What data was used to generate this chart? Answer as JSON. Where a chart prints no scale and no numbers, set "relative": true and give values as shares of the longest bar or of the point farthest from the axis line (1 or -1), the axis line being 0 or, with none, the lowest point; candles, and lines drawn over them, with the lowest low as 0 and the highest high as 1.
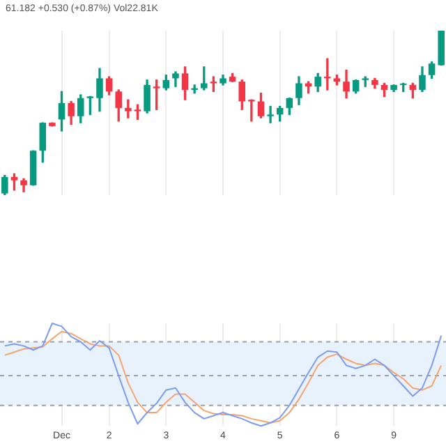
{
  "chart_data": [
    {
      "type": "candlestick",
      "title": "61.182 +0.530 (+0.87%) Vol22.81K",
      "relative": true,
      "grid": "x",
      "tick_labels": false,
      "categories": [
        null,
        null,
        null,
        null,
        null,
        null,
        null,
        null,
        null,
        null,
        null,
        null,
        null,
        null,
        null,
        null,
        null,
        null,
        null,
        null,
        null,
        null,
        null,
        null,
        null,
        null,
        null,
        null,
        null,
        null,
        null,
        null,
        null,
        null,
        null,
        null,
        null,
        null,
        null,
        null,
        null,
        null,
        null,
        null,
        null,
        null,
        null
      ],
      "ohlc": [
        [
          0.01,
          0.12,
          0,
          0.11
        ],
        [
          0.11,
          0.13,
          0.03,
          0.09
        ],
        [
          0.09,
          0.1,
          0.02,
          0.06
        ],
        [
          0.06,
          0.27,
          0.06,
          0.27
        ],
        [
          0.27,
          0.44,
          0.2,
          0.44
        ],
        [
          0.44,
          0.44,
          0.42,
          0.42
        ],
        [
          0.46,
          0.63,
          0.39,
          0.56
        ],
        [
          0.56,
          0.57,
          0.43,
          0.48
        ],
        [
          0.48,
          0.61,
          0.44,
          0.59
        ],
        [
          0.59,
          0.6,
          0.49,
          0.6
        ],
        [
          0.59,
          0.77,
          0.51,
          0.71
        ],
        [
          0.71,
          0.72,
          0.61,
          0.63
        ],
        [
          0.63,
          0.64,
          0.45,
          0.53
        ],
        [
          0.53,
          0.58,
          0.47,
          0.51
        ],
        [
          0.52,
          0.55,
          0.46,
          0.51
        ],
        [
          0.51,
          0.7,
          0.5,
          0.67
        ],
        [
          0.66,
          0.7,
          0.52,
          0.65
        ],
        [
          0.65,
          0.73,
          0.64,
          0.7
        ],
        [
          0.71,
          0.75,
          0.66,
          0.74
        ],
        [
          0.74,
          0.78,
          0.58,
          0.64
        ],
        [
          0.64,
          0.67,
          0.62,
          0.65
        ],
        [
          0.65,
          0.78,
          0.64,
          0.68
        ],
        [
          0.69,
          0.72,
          0.63,
          0.68
        ],
        [
          0.68,
          0.73,
          0.67,
          0.71
        ],
        [
          0.72,
          0.74,
          0.69,
          0.69
        ],
        [
          0.69,
          0.7,
          0.52,
          0.57
        ],
        [
          0.58,
          0.58,
          0.45,
          0.57
        ],
        [
          0.57,
          0.62,
          0.47,
          0.48
        ],
        [
          0.48,
          0.54,
          0.44,
          0.49
        ],
        [
          0.49,
          0.54,
          0.45,
          0.53
        ],
        [
          0.53,
          0.59,
          0.49,
          0.59
        ],
        [
          0.59,
          0.72,
          0.55,
          0.68
        ],
        [
          0.68,
          0.69,
          0.62,
          0.66
        ],
        [
          0.66,
          0.74,
          0.63,
          0.72
        ],
        [
          0.72,
          0.83,
          0.64,
          0.71
        ],
        [
          0.71,
          0.73,
          0.67,
          0.69
        ],
        [
          0.69,
          0.76,
          0.59,
          0.63
        ],
        [
          0.63,
          0.7,
          0.62,
          0.7
        ],
        [
          0.7,
          0.72,
          0.66,
          0.71
        ],
        [
          0.7,
          0.71,
          0.65,
          0.67
        ],
        [
          0.67,
          0.68,
          0.6,
          0.64
        ],
        [
          0.64,
          0.67,
          0.63,
          0.67
        ],
        [
          0.67,
          0.68,
          0.63,
          0.67
        ],
        [
          0.67,
          0.68,
          0.59,
          0.64
        ],
        [
          0.64,
          0.78,
          0.63,
          0.73
        ],
        [
          0.73,
          0.81,
          0.71,
          0.8
        ],
        [
          0.79,
          1,
          0.79,
          1
        ]
      ],
      "colors": [
        "#089981",
        "#f23645",
        "#f23645",
        "#089981",
        "#089981",
        "#f23645",
        "#089981",
        "#f23645",
        "#089981",
        "#089981",
        "#089981",
        "#f23645",
        "#f23645",
        "#f23645",
        "#f23645",
        "#089981",
        "#f23645",
        "#089981",
        "#089981",
        "#f23645",
        "#089981",
        "#089981",
        "#f23645",
        "#089981",
        "#f23645",
        "#f23645",
        "#f23645",
        "#f23645",
        "#089981",
        "#089981",
        "#089981",
        "#089981",
        "#f23645",
        "#089981",
        "#f23645",
        "#f23645",
        "#f23645",
        "#089981",
        "#089981",
        "#f23645",
        "#f23645",
        "#089981",
        "#089981",
        "#f23645",
        "#089981",
        "#089981",
        "#089981"
      ]
    },
    {
      "type": "line",
      "relative": true,
      "grid": "x",
      "tick_labels": "x",
      "categories": [
        null,
        null,
        null,
        null,
        null,
        null,
        "Dec",
        null,
        null,
        null,
        null,
        "2",
        null,
        null,
        null,
        null,
        null,
        "3",
        null,
        null,
        null,
        null,
        null,
        "4",
        null,
        null,
        null,
        null,
        null,
        "5",
        null,
        null,
        null,
        null,
        null,
        "6",
        null,
        null,
        null,
        null,
        null,
        "9",
        null,
        null,
        null,
        null,
        null
      ],
      "series": [
        {
          "color": "#7c9cf2",
          "values": [
            0.78,
            0.8,
            0.78,
            0.74,
            0.78,
            1,
            0.97,
            0.87,
            0.82,
            0.74,
            0.83,
            0.76,
            0.49,
            0.23,
            0.02,
            0.13,
            0.22,
            0.35,
            0.37,
            0.23,
            0.13,
            0.07,
            0.1,
            0.13,
            0.1,
            0.07,
            0.03,
            0,
            0.03,
            0.08,
            0.2,
            0.36,
            0.52,
            0.67,
            0.73,
            0.72,
            0.59,
            0.56,
            0.59,
            0.65,
            0.59,
            0.49,
            0.39,
            0.29,
            0.37,
            0.59,
            0.88
          ]
        },
        {
          "color": "#f5a46e",
          "values": [
            0.69,
            0.72,
            0.75,
            0.76,
            0.77,
            0.85,
            0.92,
            0.9,
            0.85,
            0.8,
            0.78,
            0.78,
            0.69,
            0.42,
            0.23,
            0.13,
            0.13,
            0.23,
            0.31,
            0.31,
            0.23,
            0.15,
            0.12,
            0.11,
            0.11,
            0.1,
            0.07,
            0.05,
            0.03,
            0.05,
            0.13,
            0.26,
            0.42,
            0.59,
            0.67,
            0.7,
            0.65,
            0.61,
            0.59,
            0.61,
            0.59,
            0.52,
            0.46,
            0.37,
            0.35,
            0.39,
            0.59
          ]
        }
      ],
      "bands": [
        {
          "axis": "y",
          "from": 0.2,
          "to": 0.82,
          "color": "#e8f2fd"
        }
      ],
      "ref_lines": [
        {
          "axis": "y",
          "value": 0.82,
          "color": "#9aa0ab",
          "line_style": "dashed"
        },
        {
          "axis": "y",
          "value": 0.49,
          "color": "#9aa0ab",
          "line_style": "dashed"
        },
        {
          "axis": "y",
          "value": 0.2,
          "color": "#9aa0ab",
          "line_style": "dashed"
        }
      ]
    }
  ]
}
